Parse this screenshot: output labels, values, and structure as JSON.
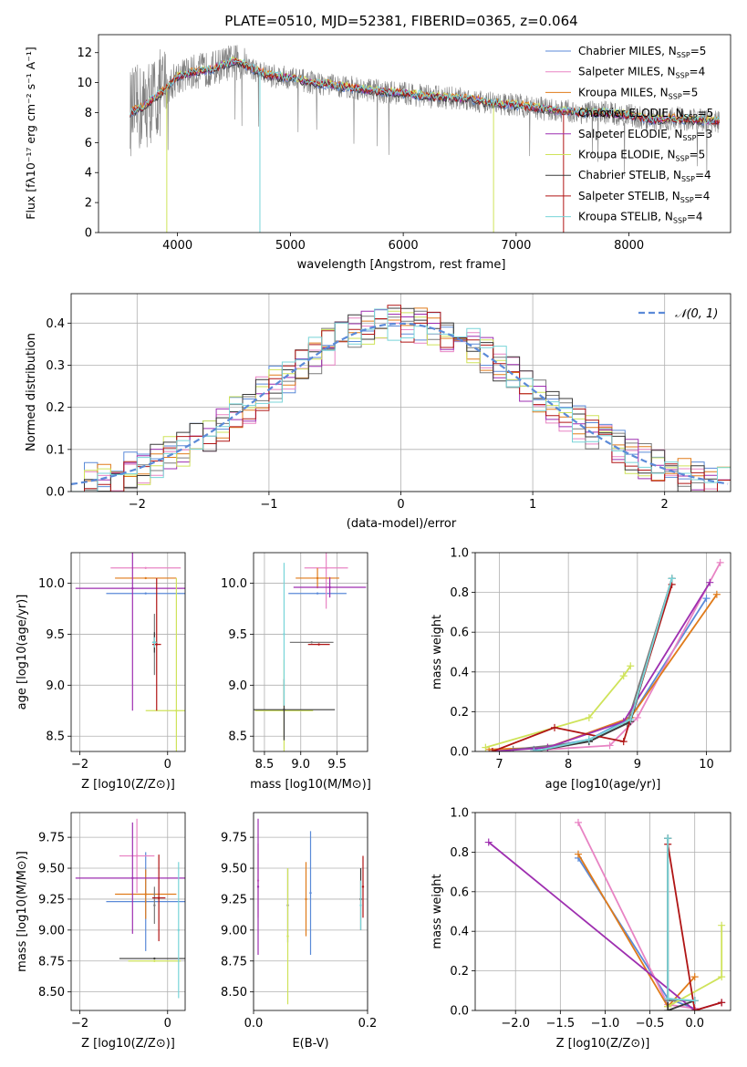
{
  "figure": {
    "title": "PLATE=0510, MJD=52381, FIBERID=0365, z=0.064"
  },
  "colors": {
    "Chabrier MILES": "#5b8ad8",
    "Salpeter MILES": "#e884c4",
    "Kroupa MILES": "#e07b1a",
    "Chabrier ELODIE": "#7a7a7a",
    "Salpeter ELODIE": "#9e2fb0",
    "Kroupa ELODIE": "#cfe35a",
    "Chabrier STELIB": "#3a3a3a",
    "Salpeter STELIB": "#b01515",
    "Kroupa STELIB": "#78d4d8",
    "data": "#808080"
  },
  "chart_data": [
    {
      "type": "line",
      "id": "spectrum",
      "title": "PLATE=0510, MJD=52381, FIBERID=0365, z=0.064",
      "xlabel": "wavelength [Angstrom, rest frame]",
      "ylabel": "Flux [fλ10⁻¹⁷ erg cm⁻² s⁻¹ A⁻¹]",
      "xlim": [
        3300,
        8900
      ],
      "ylim": [
        0,
        13.2
      ],
      "xticks": [
        4000,
        5000,
        6000,
        7000,
        8000
      ],
      "yticks": [
        0,
        2,
        4,
        6,
        8,
        10,
        12
      ],
      "legend_position": "right",
      "legend": [
        {
          "name": "Chabrier MILES",
          "nssp": "5"
        },
        {
          "name": "Salpeter MILES",
          "nssp": "4"
        },
        {
          "name": "Kroupa MILES",
          "nssp": "5"
        },
        {
          "name": "Chabrier ELODIE",
          "nssp": "5"
        },
        {
          "name": "Salpeter ELODIE",
          "nssp": "3"
        },
        {
          "name": "Kroupa ELODIE",
          "nssp": "5"
        },
        {
          "name": "Chabrier STELIB",
          "nssp": "4"
        },
        {
          "name": "Salpeter STELIB",
          "nssp": "4"
        },
        {
          "name": "Kroupa STELIB",
          "nssp": "4"
        }
      ],
      "continuum_x": [
        3580,
        3700,
        3800,
        3900,
        4000,
        4100,
        4200,
        4300,
        4400,
        4500,
        4600,
        4700,
        4800,
        4900,
        5000,
        5200,
        5400,
        5600,
        5800,
        6000,
        6200,
        6400,
        6600,
        6800,
        7000,
        7200,
        7400,
        7600,
        7800,
        8000,
        8200,
        8400,
        8600,
        8800
      ],
      "continuum_y": [
        8.0,
        8.4,
        9.0,
        9.6,
        10.4,
        10.6,
        10.8,
        10.9,
        11.2,
        11.4,
        11.2,
        10.8,
        10.5,
        10.4,
        10.3,
        10.0,
        9.8,
        9.6,
        9.4,
        9.3,
        9.1,
        9.0,
        8.9,
        8.6,
        8.5,
        8.3,
        8.1,
        8.0,
        8.0,
        7.8,
        7.5,
        7.6,
        7.5,
        7.4
      ]
    },
    {
      "type": "line",
      "id": "residuals",
      "xlabel": "(data-model)/error",
      "ylabel": "Normed distribution",
      "xlim": [
        -2.5,
        2.5
      ],
      "ylim": [
        0,
        0.47
      ],
      "xticks": [
        -2,
        -1,
        0,
        1,
        2
      ],
      "yticks": [
        0.0,
        0.1,
        0.2,
        0.3,
        0.4
      ],
      "legend_position": "top-right",
      "legend": [
        "𝒩(0, 1)"
      ],
      "bin_width": 0.1
    },
    {
      "type": "scatter",
      "id": "age-vs-Z",
      "xlabel": "Z [log10(Z/Z⊙)]",
      "ylabel": "age  [log10(age/yr)]",
      "xlim": [
        -2.2,
        0.4
      ],
      "ylim": [
        8.35,
        10.3
      ],
      "xticks": [
        -2,
        0
      ],
      "yticks": [
        8.5,
        9.0,
        9.5,
        10.0
      ],
      "series": [
        {
          "name": "Chabrier MILES",
          "x": -0.5,
          "xerr": 0.9,
          "y": 9.9,
          "yerr": 0
        },
        {
          "name": "Salpeter MILES",
          "x": -0.5,
          "xerr": 0.8,
          "y": 10.15,
          "yerr": 0
        },
        {
          "name": "Kroupa MILES",
          "x": -0.5,
          "xerr": 0.7,
          "y": 10.05,
          "yerr": 0
        },
        {
          "name": "Chabrier ELODIE",
          "x": -0.3,
          "xerr": 0,
          "y": 9.4,
          "yerr": 0.3
        },
        {
          "name": "Salpeter ELODIE",
          "x": -0.8,
          "xerr": 1.3,
          "y": 9.95,
          "yerr": 1.2
        },
        {
          "name": "Kroupa ELODIE",
          "x": 0.2,
          "xerr": 0.7,
          "y": 8.75,
          "yerr": 1.3
        },
        {
          "name": "Chabrier STELIB",
          "x": -0.3,
          "xerr": 0.05,
          "y": 9.42,
          "yerr": 0.1
        },
        {
          "name": "Salpeter STELIB",
          "x": -0.25,
          "xerr": 0.1,
          "y": 9.4,
          "yerr": 0.65
        },
        {
          "name": "Kroupa STELIB",
          "x": -0.3,
          "xerr": 0.05,
          "y": 9.42,
          "yerr": 0.05
        }
      ]
    },
    {
      "type": "scatter",
      "id": "age-vs-mass",
      "xlabel": "mass [log10(M/M⊙)]",
      "ylabel": "",
      "xlim": [
        8.35,
        9.92
      ],
      "ylim": [
        8.35,
        10.3
      ],
      "xticks": [
        8.5,
        9.0,
        9.5
      ],
      "yticks": [
        8.5,
        9.0,
        9.5,
        10.0
      ],
      "series": [
        {
          "name": "Chabrier MILES",
          "x": 9.23,
          "xerr": 0.4,
          "y": 9.9,
          "yerr": 0
        },
        {
          "name": "Salpeter MILES",
          "x": 9.35,
          "xerr": 0.3,
          "y": 10.15,
          "yerr": 0.4
        },
        {
          "name": "Kroupa MILES",
          "x": 9.23,
          "xerr": 0.3,
          "y": 10.05,
          "yerr": 0.1
        },
        {
          "name": "Chabrier ELODIE",
          "x": 9.15,
          "xerr": 0.3,
          "y": 9.42,
          "yerr": 0
        },
        {
          "name": "Salpeter ELODIE",
          "x": 9.4,
          "xerr": 0.5,
          "y": 9.96,
          "yerr": 0.1
        },
        {
          "name": "Kroupa ELODIE",
          "x": 8.77,
          "xerr": 0.4,
          "y": 8.75,
          "yerr": 0.5
        },
        {
          "name": "Chabrier STELIB",
          "x": 8.77,
          "xerr": 0.7,
          "y": 8.76,
          "yerr": 0.3
        },
        {
          "name": "Salpeter STELIB",
          "x": 9.25,
          "xerr": 0.15,
          "y": 9.4,
          "yerr": 0
        },
        {
          "name": "Kroupa STELIB",
          "x": 8.77,
          "xerr": 0,
          "y": 9.5,
          "yerr": 0.7
        }
      ]
    },
    {
      "type": "line",
      "id": "weight-vs-age",
      "xlabel": "age  [log10(age/yr)]",
      "ylabel": "mass weight",
      "xlim": [
        6.65,
        10.35
      ],
      "ylim": [
        0,
        1.0
      ],
      "xticks": [
        7,
        8,
        9,
        10
      ],
      "yticks": [
        0.0,
        0.2,
        0.4,
        0.6,
        0.8,
        1.0
      ],
      "series": [
        {
          "name": "Chabrier MILES",
          "x": [
            7.5,
            8.3,
            8.9,
            10.0
          ],
          "y": [
            0.01,
            0.06,
            0.17,
            0.77
          ]
        },
        {
          "name": "Salpeter MILES",
          "x": [
            7.7,
            8.6,
            9.0,
            10.2
          ],
          "y": [
            0.01,
            0.03,
            0.17,
            0.95
          ]
        },
        {
          "name": "Kroupa MILES",
          "x": [
            6.85,
            7.7,
            8.9,
            10.15
          ],
          "y": [
            0.01,
            0.02,
            0.17,
            0.79
          ]
        },
        {
          "name": "Chabrier ELODIE",
          "x": [
            7.2,
            8.3,
            8.85,
            9.5
          ],
          "y": [
            0.01,
            0.05,
            0.14,
            0.87
          ]
        },
        {
          "name": "Salpeter ELODIE",
          "x": [
            6.9,
            7.7,
            8.8,
            10.05
          ],
          "y": [
            0.0,
            0.02,
            0.15,
            0.85
          ]
        },
        {
          "name": "Kroupa ELODIE",
          "x": [
            6.8,
            8.3,
            8.8,
            8.9
          ],
          "y": [
            0.02,
            0.17,
            0.38,
            0.43
          ]
        },
        {
          "name": "Chabrier STELIB",
          "x": [
            7.5,
            8.3,
            8.9,
            9.5
          ],
          "y": [
            0.0,
            0.05,
            0.15,
            0.87
          ]
        },
        {
          "name": "Salpeter STELIB",
          "x": [
            6.9,
            7.8,
            8.8,
            9.5
          ],
          "y": [
            0.0,
            0.12,
            0.05,
            0.84
          ]
        },
        {
          "name": "Kroupa STELIB",
          "x": [
            7.5,
            8.3,
            8.9,
            9.5
          ],
          "y": [
            0.0,
            0.06,
            0.16,
            0.87
          ]
        }
      ]
    },
    {
      "type": "scatter",
      "id": "mass-vs-Z",
      "xlabel": "Z [log10(Z/Z⊙)]",
      "ylabel": "mass [log10(M/M⊙)]",
      "xlim": [
        -2.2,
        0.4
      ],
      "ylim": [
        8.35,
        9.95
      ],
      "xticks": [
        -2,
        0
      ],
      "yticks": [
        8.5,
        8.75,
        9.0,
        9.25,
        9.5,
        9.75
      ],
      "series": [
        {
          "name": "Chabrier MILES",
          "x": -0.5,
          "xerr": 0.9,
          "y": 9.23,
          "yerr": 0.4
        },
        {
          "name": "Salpeter MILES",
          "x": -0.7,
          "xerr": 0.4,
          "y": 9.6,
          "yerr": 0.3
        },
        {
          "name": "Kroupa MILES",
          "x": -0.5,
          "xerr": 0.7,
          "y": 9.29,
          "yerr": 0.2
        },
        {
          "name": "Chabrier ELODIE",
          "x": -0.3,
          "xerr": 0,
          "y": 9.2,
          "yerr": 0.15
        },
        {
          "name": "Salpeter ELODIE",
          "x": -0.8,
          "xerr": 1.3,
          "y": 9.42,
          "yerr": 0.45
        },
        {
          "name": "Kroupa ELODIE",
          "x": -0.3,
          "xerr": 0.6,
          "y": 8.75,
          "yerr": 0
        },
        {
          "name": "Chabrier STELIB",
          "x": -0.3,
          "xerr": 0.8,
          "y": 8.77,
          "yerr": 0
        },
        {
          "name": "Salpeter STELIB",
          "x": -0.2,
          "xerr": 0.15,
          "y": 9.26,
          "yerr": 0.35
        },
        {
          "name": "Kroupa STELIB",
          "x": 0.25,
          "xerr": 0,
          "y": 9.0,
          "yerr": 0.55
        }
      ]
    },
    {
      "type": "scatter",
      "id": "mass-vs-ebv",
      "xlabel": "E(B-V)",
      "ylabel": "",
      "xlim": [
        0.0,
        0.2
      ],
      "ylim": [
        8.35,
        9.95
      ],
      "xticks": [
        0.0,
        0.2
      ],
      "yticks": [
        8.5,
        8.75,
        9.0,
        9.25,
        9.5,
        9.75
      ],
      "series": [
        {
          "name": "Chabrier MILES",
          "x": 0.1,
          "y": 9.3,
          "yerr": 0.5
        },
        {
          "name": "Salpeter MILES",
          "x": 0.008,
          "y": 9.4,
          "yerr": 0.3
        },
        {
          "name": "Kroupa MILES",
          "x": 0.092,
          "y": 9.25,
          "yerr": 0.3
        },
        {
          "name": "Chabrier ELODIE",
          "x": 0.06,
          "y": 9.2,
          "yerr": 0.3
        },
        {
          "name": "Salpeter ELODIE",
          "x": 0.008,
          "y": 9.35,
          "yerr": 0.55
        },
        {
          "name": "Kroupa ELODIE",
          "x": 0.06,
          "y": 8.95,
          "yerr": 0.55
        },
        {
          "name": "Chabrier STELIB",
          "x": 0.188,
          "y": 9.25,
          "yerr": 0.25
        },
        {
          "name": "Salpeter STELIB",
          "x": 0.192,
          "y": 9.35,
          "yerr": 0.25
        },
        {
          "name": "Kroupa STELIB",
          "x": 0.188,
          "y": 9.2,
          "yerr": 0.2
        }
      ]
    },
    {
      "type": "line",
      "id": "weight-vs-Z",
      "xlabel": "Z [log10(Z/Z⊙)]",
      "ylabel": "mass weight",
      "xlim": [
        -2.45,
        0.4
      ],
      "ylim": [
        0,
        1.0
      ],
      "xticks": [
        -2.0,
        -1.5,
        -1.0,
        -0.5,
        0.0
      ],
      "yticks": [
        0.0,
        0.2,
        0.4,
        0.6,
        0.8,
        1.0
      ],
      "series": [
        {
          "name": "Chabrier MILES",
          "x": [
            -1.3,
            -0.3,
            0.0
          ],
          "y": [
            0.77,
            0.06,
            0.01
          ]
        },
        {
          "name": "Salpeter MILES",
          "x": [
            -1.3,
            -0.3,
            0.0
          ],
          "y": [
            0.95,
            0.03,
            0.01
          ]
        },
        {
          "name": "Kroupa MILES",
          "x": [
            -1.3,
            -0.3,
            0.0
          ],
          "y": [
            0.79,
            0.02,
            0.17
          ]
        },
        {
          "name": "Chabrier ELODIE",
          "x": [
            -0.3,
            -0.3,
            0.0
          ],
          "y": [
            0.87,
            0.05,
            0.05
          ]
        },
        {
          "name": "Salpeter ELODIE",
          "x": [
            -2.3,
            0.0,
            0.3
          ],
          "y": [
            0.85,
            0.0,
            0.04
          ]
        },
        {
          "name": "Kroupa ELODIE",
          "x": [
            -0.3,
            0.3,
            0.3
          ],
          "y": [
            0.02,
            0.17,
            0.43
          ]
        },
        {
          "name": "Chabrier STELIB",
          "x": [
            -0.3,
            -0.3,
            0.0
          ],
          "y": [
            0.87,
            0.0,
            0.05
          ]
        },
        {
          "name": "Salpeter STELIB",
          "x": [
            -0.3,
            0.0,
            0.3
          ],
          "y": [
            0.84,
            0.0,
            0.04
          ]
        },
        {
          "name": "Kroupa STELIB",
          "x": [
            -0.3,
            -0.3,
            0.0
          ],
          "y": [
            0.87,
            0.06,
            0.05
          ]
        }
      ]
    }
  ]
}
